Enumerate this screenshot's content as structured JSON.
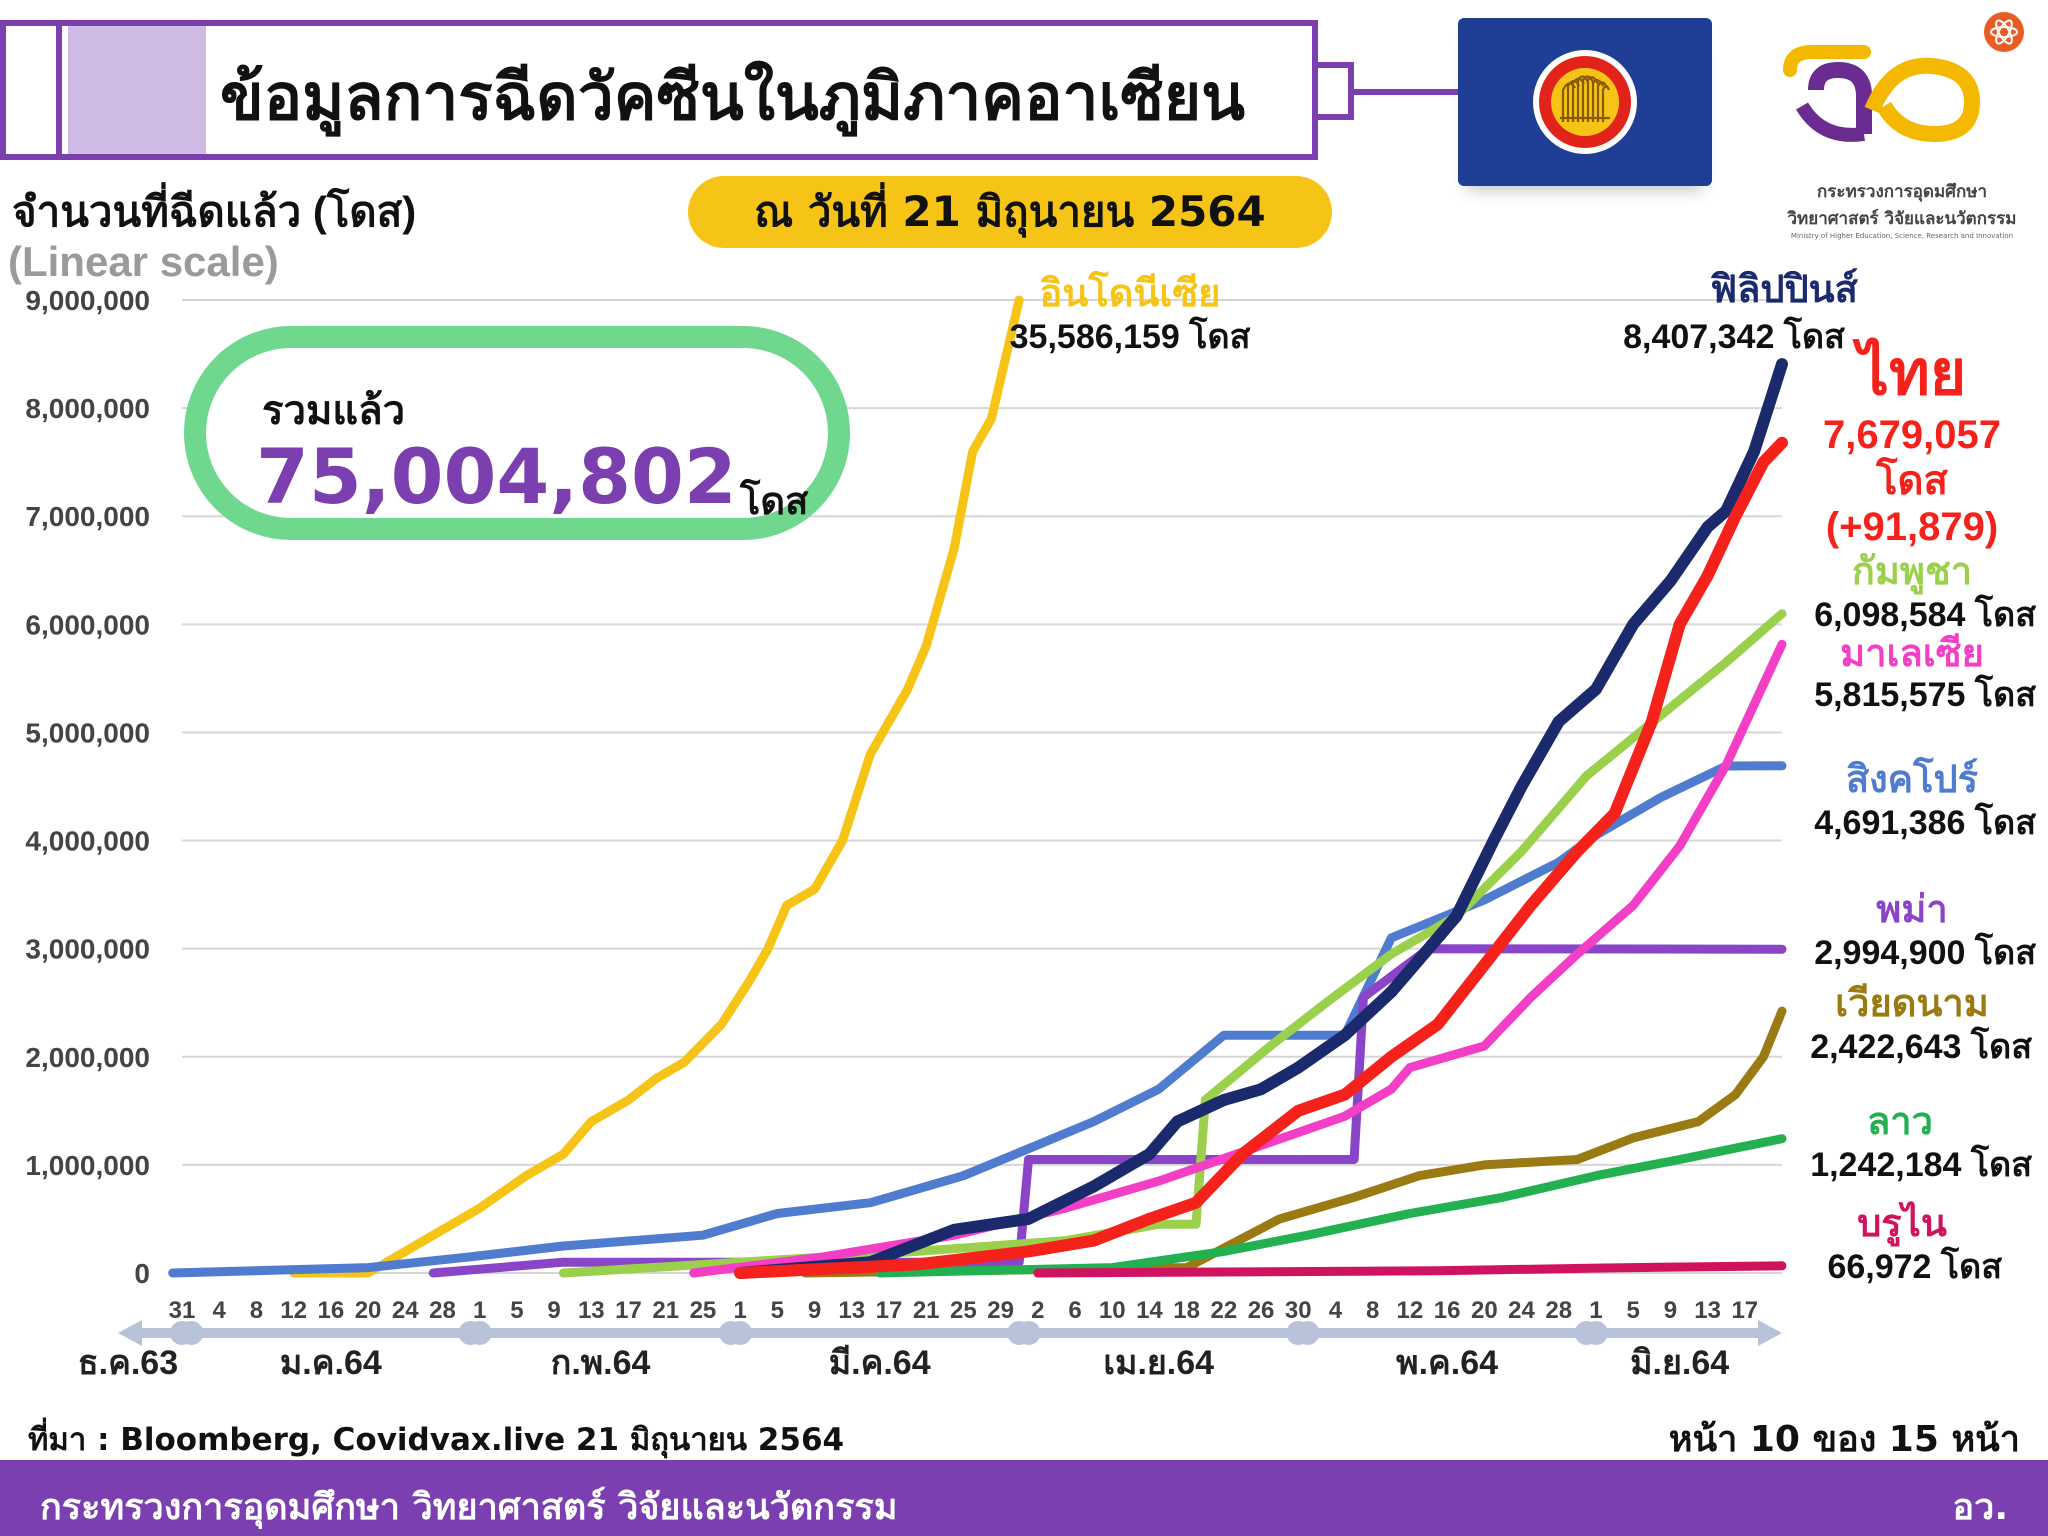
{
  "header": {
    "title": "ข้อมูลการฉีดวัคซีนในภูมิภาคอาเซียน",
    "date": "ณ วันที่ 21 มิถุนายน 2564"
  },
  "logo": {
    "line1": "กระทรวงการอุดมศึกษา",
    "line2": "วิทยาศาสตร์ วิจัยและนวัตกรรม",
    "line3": "Ministry of Higher Education, Science, Research and Innovation"
  },
  "total": {
    "label": "รวมแล้ว",
    "value": "75,004,802",
    "unit": "โดส"
  },
  "source": "ที่มา : Bloomberg, Covidvax.live 21 มิถุนายน 2564",
  "page_indicator": "หน้า 10 ของ 15 หน้า",
  "footer": {
    "ministry": "กระทรวงการอุดมศึกษา วิทยาศาสตร์ วิจัยและนวัตกรรม",
    "abbr": "อว."
  },
  "colors": {
    "brand_purple": "#7b3fb0",
    "pill_yellow": "#f5c416",
    "total_green": "#6fd88e",
    "asean_blue": "#1f3f97",
    "asean_red": "#e2231a"
  },
  "chart_data": {
    "type": "line",
    "ylabel": "จำนวนที่ฉีดแล้ว (โดส)",
    "scale_note": "(Linear scale)",
    "ylim": [
      0,
      9000000
    ],
    "yticks": [
      0,
      1000000,
      2000000,
      3000000,
      4000000,
      5000000,
      6000000,
      7000000,
      8000000,
      9000000
    ],
    "ytick_labels": [
      "0",
      "1,000,000",
      "2,000,000",
      "3,000,000",
      "4,000,000",
      "5,000,000",
      "6,000,000",
      "7,000,000",
      "8,000,000",
      "9,000,000"
    ],
    "grid": "horizontal",
    "x_day_labels": [
      "31",
      "4",
      "8",
      "12",
      "16",
      "20",
      "24",
      "28",
      "1",
      "5",
      "9",
      "13",
      "17",
      "21",
      "25",
      "1",
      "5",
      "9",
      "13",
      "17",
      "21",
      "25",
      "29",
      "2",
      "6",
      "10",
      "14",
      "18",
      "22",
      "26",
      "30",
      "4",
      "8",
      "12",
      "16",
      "20",
      "24",
      "28",
      "1",
      "5",
      "9",
      "13",
      "17"
    ],
    "x_months": [
      "ธ.ค.63",
      "ม.ค.64",
      "ก.พ.64",
      "มี.ค.64",
      "เม.ย.64",
      "พ.ค.64",
      "มิ.ย.64"
    ],
    "series": [
      {
        "name": "อินโดนีเซีย",
        "color": "#f5c416",
        "dose_label": "35,586,159 โดส",
        "points": [
          [
            "2021-01-12",
            0
          ],
          [
            "2021-01-20",
            0
          ],
          [
            "2021-01-23",
            150000
          ],
          [
            "2021-01-28",
            400000
          ],
          [
            "2021-02-01",
            600000
          ],
          [
            "2021-02-06",
            900000
          ],
          [
            "2021-02-10",
            1100000
          ],
          [
            "2021-02-13",
            1400000
          ],
          [
            "2021-02-17",
            1600000
          ],
          [
            "2021-02-20",
            1800000
          ],
          [
            "2021-02-23",
            1950000
          ],
          [
            "2021-02-27",
            2300000
          ],
          [
            "2021-03-02",
            2700000
          ],
          [
            "2021-03-04",
            3000000
          ],
          [
            "2021-03-06",
            3400000
          ],
          [
            "2021-03-09",
            3550000
          ],
          [
            "2021-03-12",
            4000000
          ],
          [
            "2021-03-15",
            4800000
          ],
          [
            "2021-03-19",
            5400000
          ],
          [
            "2021-03-21",
            5800000
          ],
          [
            "2021-03-24",
            6700000
          ],
          [
            "2021-03-26",
            7600000
          ],
          [
            "2021-03-28",
            7900000
          ],
          [
            "2021-03-31",
            9000000
          ]
        ]
      },
      {
        "name": "ฟิลิปปินส์",
        "color": "#1a2a6c",
        "dose_label": "8,407,342 โดส",
        "points": [
          [
            "2021-03-01",
            0
          ],
          [
            "2021-03-15",
            100000
          ],
          [
            "2021-03-24",
            400000
          ],
          [
            "2021-04-01",
            500000
          ],
          [
            "2021-04-08",
            800000
          ],
          [
            "2021-04-14",
            1100000
          ],
          [
            "2021-04-17",
            1400000
          ],
          [
            "2021-04-22",
            1600000
          ],
          [
            "2021-04-26",
            1700000
          ],
          [
            "2021-04-30",
            1900000
          ],
          [
            "2021-05-05",
            2200000
          ],
          [
            "2021-05-10",
            2600000
          ],
          [
            "2021-05-14",
            3000000
          ],
          [
            "2021-05-17",
            3300000
          ],
          [
            "2021-05-21",
            4000000
          ],
          [
            "2021-05-24",
            4500000
          ],
          [
            "2021-05-28",
            5100000
          ],
          [
            "2021-06-01",
            5400000
          ],
          [
            "2021-06-05",
            6000000
          ],
          [
            "2021-06-09",
            6400000
          ],
          [
            "2021-06-13",
            6900000
          ],
          [
            "2021-06-15",
            7050000
          ],
          [
            "2021-06-18",
            7600000
          ],
          [
            "2021-06-21",
            8407342
          ]
        ]
      },
      {
        "name": "ไทย",
        "color": "#f5221b",
        "dose_label": "7,679,057",
        "unit": "โดส",
        "delta": "(+91,879)",
        "points": [
          [
            "2021-03-01",
            0
          ],
          [
            "2021-03-20",
            80000
          ],
          [
            "2021-04-01",
            200000
          ],
          [
            "2021-04-08",
            300000
          ],
          [
            "2021-04-14",
            500000
          ],
          [
            "2021-04-19",
            650000
          ],
          [
            "2021-04-24",
            1100000
          ],
          [
            "2021-04-30",
            1500000
          ],
          [
            "2021-05-05",
            1650000
          ],
          [
            "2021-05-10",
            2000000
          ],
          [
            "2021-05-15",
            2300000
          ],
          [
            "2021-05-20",
            2850000
          ],
          [
            "2021-05-25",
            3400000
          ],
          [
            "2021-05-30",
            3900000
          ],
          [
            "2021-06-03",
            4250000
          ],
          [
            "2021-06-07",
            5100000
          ],
          [
            "2021-06-10",
            6000000
          ],
          [
            "2021-06-13",
            6450000
          ],
          [
            "2021-06-16",
            7000000
          ],
          [
            "2021-06-19",
            7500000
          ],
          [
            "2021-06-21",
            7679057
          ]
        ]
      },
      {
        "name": "กัมพูชา",
        "color": "#9bd04c",
        "dose_label": "6,098,584 โดส",
        "points": [
          [
            "2021-02-10",
            0
          ],
          [
            "2021-03-01",
            100000
          ],
          [
            "2021-03-20",
            200000
          ],
          [
            "2021-04-05",
            300000
          ],
          [
            "2021-04-15",
            450000
          ],
          [
            "2021-04-19",
            450000
          ],
          [
            "2021-04-20",
            1600000
          ],
          [
            "2021-04-27",
            2100000
          ],
          [
            "2021-05-03",
            2500000
          ],
          [
            "2021-05-10",
            2950000
          ],
          [
            "2021-05-17",
            3300000
          ],
          [
            "2021-05-24",
            3900000
          ],
          [
            "2021-05-31",
            4600000
          ],
          [
            "2021-06-05",
            4950000
          ],
          [
            "2021-06-10",
            5300000
          ],
          [
            "2021-06-15",
            5650000
          ],
          [
            "2021-06-21",
            6098584
          ]
        ]
      },
      {
        "name": "มาเลเซีย",
        "color": "#f23fc6",
        "dose_label": "5,815,575 โดส",
        "points": [
          [
            "2021-02-24",
            0
          ],
          [
            "2021-03-10",
            150000
          ],
          [
            "2021-03-24",
            350000
          ],
          [
            "2021-04-05",
            600000
          ],
          [
            "2021-04-15",
            850000
          ],
          [
            "2021-04-25",
            1150000
          ],
          [
            "2021-05-05",
            1450000
          ],
          [
            "2021-05-10",
            1700000
          ],
          [
            "2021-05-12",
            1900000
          ],
          [
            "2021-05-20",
            2100000
          ],
          [
            "2021-05-25",
            2550000
          ],
          [
            "2021-05-30",
            2950000
          ],
          [
            "2021-06-05",
            3400000
          ],
          [
            "2021-06-10",
            3950000
          ],
          [
            "2021-06-15",
            4700000
          ],
          [
            "2021-06-21",
            5815575
          ]
        ]
      },
      {
        "name": "สิงคโปร์",
        "color": "#4f7cce",
        "dose_label": "4,691,386 โดส",
        "points": [
          [
            "2020-12-30",
            0
          ],
          [
            "2021-01-20",
            50000
          ],
          [
            "2021-01-31",
            150000
          ],
          [
            "2021-02-10",
            250000
          ],
          [
            "2021-02-25",
            350000
          ],
          [
            "2021-03-05",
            550000
          ],
          [
            "2021-03-15",
            650000
          ],
          [
            "2021-03-25",
            900000
          ],
          [
            "2021-04-01",
            1150000
          ],
          [
            "2021-04-08",
            1400000
          ],
          [
            "2021-04-15",
            1700000
          ],
          [
            "2021-04-22",
            2200000
          ],
          [
            "2021-05-05",
            2200000
          ],
          [
            "2021-05-10",
            3100000
          ],
          [
            "2021-05-20",
            3450000
          ],
          [
            "2021-05-28",
            3800000
          ],
          [
            "2021-06-01",
            4050000
          ],
          [
            "2021-06-08",
            4400000
          ],
          [
            "2021-06-15",
            4690000
          ],
          [
            "2021-06-21",
            4691386
          ]
        ]
      },
      {
        "name": "พม่า",
        "color": "#8a44c8",
        "dose_label": "2,994,900 โดส",
        "points": [
          [
            "2021-01-27",
            0
          ],
          [
            "2021-02-10",
            100000
          ],
          [
            "2021-03-31",
            100000
          ],
          [
            "2021-04-01",
            1050000
          ],
          [
            "2021-05-06",
            1050000
          ],
          [
            "2021-05-07",
            2550000
          ],
          [
            "2021-05-14",
            3000000
          ],
          [
            "2021-06-21",
            2994900
          ]
        ]
      },
      {
        "name": "เวียดนาม",
        "color": "#9a7a12",
        "dose_label": "2,422,643 โดส",
        "points": [
          [
            "2021-03-08",
            0
          ],
          [
            "2021-04-18",
            50000
          ],
          [
            "2021-04-28",
            500000
          ],
          [
            "2021-05-06",
            700000
          ],
          [
            "2021-05-13",
            900000
          ],
          [
            "2021-05-20",
            1000000
          ],
          [
            "2021-05-30",
            1050000
          ],
          [
            "2021-06-05",
            1250000
          ],
          [
            "2021-06-12",
            1400000
          ],
          [
            "2021-06-16",
            1650000
          ],
          [
            "2021-06-19",
            2000000
          ],
          [
            "2021-06-21",
            2422643
          ]
        ]
      },
      {
        "name": "ลาว",
        "color": "#22b050",
        "dose_label": "1,242,184 โดส",
        "points": [
          [
            "2021-03-16",
            0
          ],
          [
            "2021-04-10",
            50000
          ],
          [
            "2021-04-22",
            200000
          ],
          [
            "2021-05-01",
            350000
          ],
          [
            "2021-05-12",
            550000
          ],
          [
            "2021-05-22",
            700000
          ],
          [
            "2021-06-01",
            900000
          ],
          [
            "2021-06-10",
            1050000
          ],
          [
            "2021-06-21",
            1242184
          ]
        ]
      },
      {
        "name": "บรูไน",
        "color": "#d0135e",
        "dose_label": "66,972 โดส",
        "points": [
          [
            "2021-04-02",
            0
          ],
          [
            "2021-05-15",
            20000
          ],
          [
            "2021-06-01",
            45000
          ],
          [
            "2021-06-21",
            66972
          ]
        ]
      }
    ]
  }
}
